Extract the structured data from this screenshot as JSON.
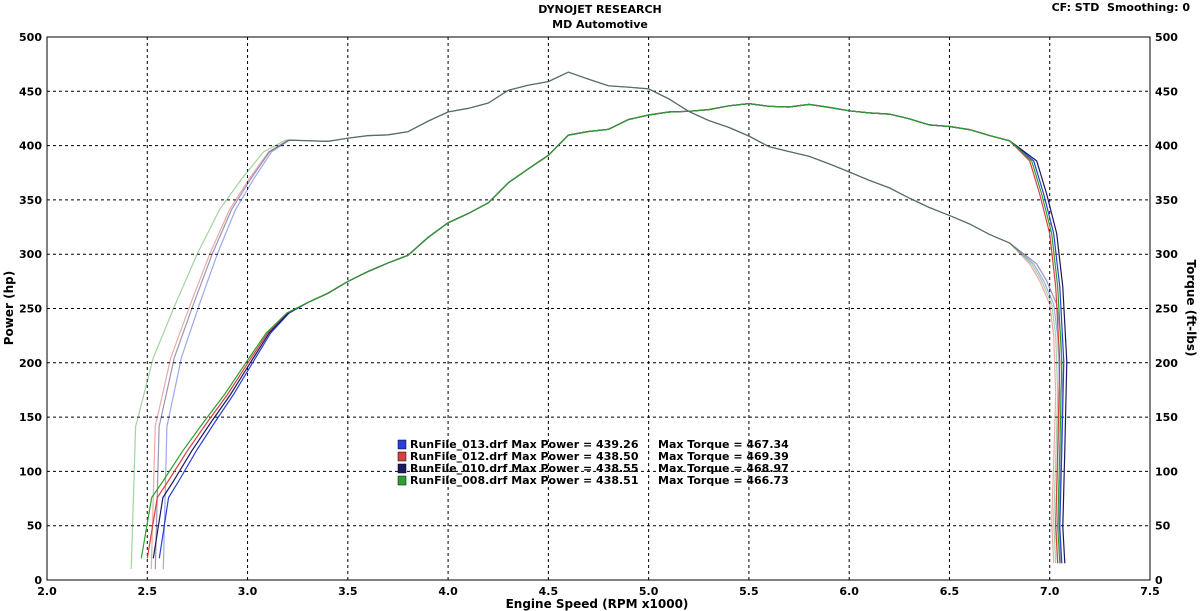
{
  "header": {
    "title": "DYNOJET RESEARCH",
    "subtitle": "MD Automotive",
    "cf_label": "CF: STD",
    "smoothing_label": "Smoothing: 0"
  },
  "chart_data": {
    "type": "line",
    "xlabel": "Engine Speed (RPM x1000)",
    "ylabel_left": "Power (hp)",
    "ylabel_right": "Torque (ft-lbs)",
    "xlim": [
      2.0,
      7.5
    ],
    "ylim": [
      0,
      500
    ],
    "x_ticks": [
      "2.0",
      "2.5",
      "3.0",
      "3.5",
      "4.0",
      "4.5",
      "5.0",
      "5.5",
      "6.0",
      "6.5",
      "7.0",
      "7.5"
    ],
    "y_ticks": [
      "0",
      "50",
      "100",
      "150",
      "200",
      "250",
      "300",
      "350",
      "400",
      "450",
      "500"
    ],
    "grid": true,
    "legend_position": "center-bottom",
    "legend": [
      {
        "run": "RunFile_013.drf",
        "power_label": "Max Power = 439.26",
        "torque_label": "Max Torque = 467.34",
        "color": "#2b3fd6"
      },
      {
        "run": "RunFile_012.drf",
        "power_label": "Max Power = 438.50",
        "torque_label": "Max Torque = 469.39",
        "color": "#d84040"
      },
      {
        "run": "RunFile_010.drf",
        "power_label": "Max Power = 438.55",
        "torque_label": "Max Torque = 468.97",
        "color": "#1a1a5e"
      },
      {
        "run": "RunFile_008.drf",
        "power_label": "Max Power = 438.51",
        "torque_label": "Max Torque = 466.73",
        "color": "#2fa02f"
      }
    ],
    "power_base": [
      [
        2.5,
        20
      ],
      [
        2.55,
        75
      ],
      [
        2.6,
        90
      ],
      [
        2.7,
        120
      ],
      [
        2.8,
        145
      ],
      [
        2.9,
        170
      ],
      [
        3.0,
        200
      ],
      [
        3.1,
        228
      ],
      [
        3.2,
        245
      ],
      [
        3.3,
        255
      ],
      [
        3.4,
        265
      ],
      [
        3.5,
        275
      ],
      [
        3.6,
        283
      ],
      [
        3.7,
        292
      ],
      [
        3.8,
        300
      ],
      [
        3.9,
        315
      ],
      [
        4.0,
        328
      ],
      [
        4.1,
        338
      ],
      [
        4.2,
        348
      ],
      [
        4.3,
        365
      ],
      [
        4.4,
        378
      ],
      [
        4.5,
        392
      ],
      [
        4.6,
        410
      ],
      [
        4.7,
        412
      ],
      [
        4.8,
        415
      ],
      [
        4.9,
        425
      ],
      [
        5.0,
        428
      ],
      [
        5.1,
        430
      ],
      [
        5.2,
        432
      ],
      [
        5.3,
        434
      ],
      [
        5.4,
        436
      ],
      [
        5.5,
        438
      ],
      [
        5.6,
        437
      ],
      [
        5.7,
        436
      ],
      [
        5.8,
        437
      ],
      [
        5.9,
        435
      ],
      [
        6.0,
        433
      ],
      [
        6.1,
        430
      ],
      [
        6.2,
        428
      ],
      [
        6.3,
        425
      ],
      [
        6.4,
        420
      ],
      [
        6.5,
        417
      ],
      [
        6.6,
        414
      ],
      [
        6.7,
        410
      ],
      [
        6.8,
        405
      ],
      [
        6.9,
        385
      ],
      [
        6.95,
        355
      ],
      [
        7.0,
        320
      ],
      [
        7.03,
        270
      ],
      [
        7.05,
        200
      ],
      [
        7.04,
        120
      ],
      [
        7.03,
        50
      ],
      [
        7.04,
        15
      ]
    ],
    "torque_base": [
      [
        2.5,
        10
      ],
      [
        2.52,
        140
      ],
      [
        2.6,
        205
      ],
      [
        2.7,
        255
      ],
      [
        2.8,
        300
      ],
      [
        2.9,
        340
      ],
      [
        3.0,
        370
      ],
      [
        3.1,
        395
      ],
      [
        3.2,
        404
      ],
      [
        3.3,
        404
      ],
      [
        3.4,
        405
      ],
      [
        3.5,
        407
      ],
      [
        3.6,
        408
      ],
      [
        3.7,
        410
      ],
      [
        3.8,
        414
      ],
      [
        3.9,
        422
      ],
      [
        4.0,
        430
      ],
      [
        4.1,
        435
      ],
      [
        4.2,
        440
      ],
      [
        4.3,
        450
      ],
      [
        4.4,
        455
      ],
      [
        4.5,
        460
      ],
      [
        4.6,
        468
      ],
      [
        4.7,
        460
      ],
      [
        4.8,
        455
      ],
      [
        4.9,
        455
      ],
      [
        5.0,
        452
      ],
      [
        5.1,
        442
      ],
      [
        5.2,
        432
      ],
      [
        5.3,
        424
      ],
      [
        5.4,
        416
      ],
      [
        5.5,
        408
      ],
      [
        5.6,
        400
      ],
      [
        5.7,
        395
      ],
      [
        5.8,
        389
      ],
      [
        5.9,
        383
      ],
      [
        6.0,
        377
      ],
      [
        6.1,
        368
      ],
      [
        6.2,
        360
      ],
      [
        6.3,
        352
      ],
      [
        6.4,
        344
      ],
      [
        6.5,
        335
      ],
      [
        6.6,
        327
      ],
      [
        6.7,
        319
      ],
      [
        6.8,
        311
      ],
      [
        6.9,
        290
      ],
      [
        6.95,
        275
      ],
      [
        7.0,
        255
      ],
      [
        7.02,
        225
      ],
      [
        7.03,
        170
      ],
      [
        7.02,
        110
      ],
      [
        7.01,
        55
      ],
      [
        7.02,
        15
      ]
    ],
    "run_offsets": [
      {
        "power_start": 0.06,
        "torque_start": 0.08,
        "end": 0.02
      },
      {
        "power_start": 0.0,
        "torque_start": 0.02,
        "end": 0.0
      },
      {
        "power_start": 0.03,
        "torque_start": 0.04,
        "end": 0.035
      },
      {
        "power_start": -0.03,
        "torque_start": -0.08,
        "end": 0.01
      }
    ]
  }
}
